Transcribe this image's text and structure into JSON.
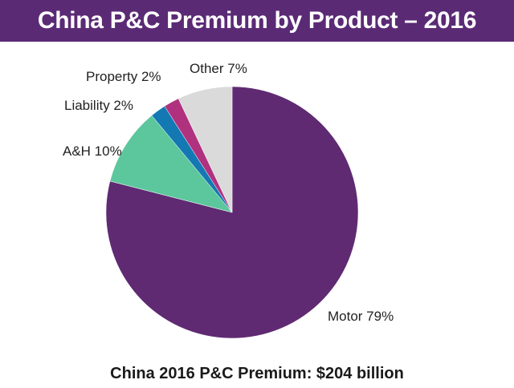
{
  "header": {
    "title": "China P&C Premium by Product – 2016"
  },
  "footer": {
    "caption": "China 2016 P&C Premium: $204 billion"
  },
  "colors": {
    "header_bg": "#5b2a75",
    "Motor": "#5f2a72",
    "A&H": "#5cc79d",
    "Liability": "#1478b3",
    "Property": "#b0327f",
    "Other": "#dadada"
  },
  "chart_data": {
    "type": "pie",
    "title": "China P&C Premium by Product – 2016",
    "start": "12 o'clock",
    "direction": "clockwise",
    "slices": [
      {
        "label": "Motor",
        "value": 79,
        "text": "Motor 79%"
      },
      {
        "label": "A&H",
        "value": 10,
        "text": "A&H 10%"
      },
      {
        "label": "Liability",
        "value": 2,
        "text": "Liability 2%"
      },
      {
        "label": "Property",
        "value": 2,
        "text": "Property 2%"
      },
      {
        "label": "Other",
        "value": 7,
        "text": "Other 7%"
      }
    ]
  }
}
